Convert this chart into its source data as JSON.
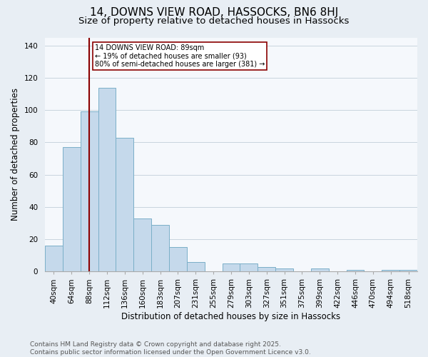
{
  "title": "14, DOWNS VIEW ROAD, HASSOCKS, BN6 8HJ",
  "subtitle": "Size of property relative to detached houses in Hassocks",
  "xlabel": "Distribution of detached houses by size in Hassocks",
  "ylabel": "Number of detached properties",
  "categories": [
    "40sqm",
    "64sqm",
    "88sqm",
    "112sqm",
    "136sqm",
    "160sqm",
    "183sqm",
    "207sqm",
    "231sqm",
    "255sqm",
    "279sqm",
    "303sqm",
    "327sqm",
    "351sqm",
    "375sqm",
    "399sqm",
    "422sqm",
    "446sqm",
    "470sqm",
    "494sqm",
    "518sqm"
  ],
  "values": [
    16,
    77,
    99,
    114,
    83,
    33,
    29,
    15,
    6,
    0,
    5,
    5,
    3,
    2,
    0,
    2,
    0,
    1,
    0,
    1,
    1
  ],
  "bar_color": "#c5d9eb",
  "bar_edgecolor": "#7aafc8",
  "vline_x": 2,
  "vline_color": "#8b0000",
  "annotation_text": "14 DOWNS VIEW ROAD: 89sqm\n← 19% of detached houses are smaller (93)\n80% of semi-detached houses are larger (381) →",
  "annotation_box_color": "white",
  "annotation_box_edgecolor": "#8b0000",
  "ylim": [
    0,
    145
  ],
  "footnote": "Contains HM Land Registry data © Crown copyright and database right 2025.\nContains public sector information licensed under the Open Government Licence v3.0.",
  "background_color": "#e8eef4",
  "plot_background_color": "#f5f8fc",
  "title_fontsize": 11,
  "subtitle_fontsize": 9.5,
  "label_fontsize": 8.5,
  "tick_fontsize": 7.5,
  "footnote_fontsize": 6.5
}
